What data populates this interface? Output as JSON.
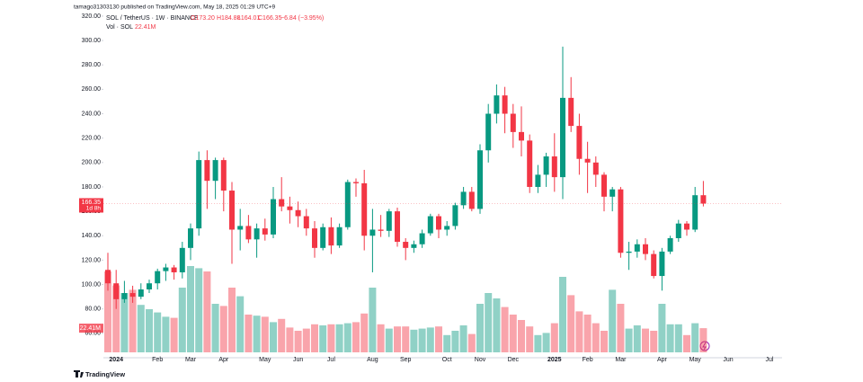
{
  "chart_data": {
    "type": "candlestick",
    "published": "tamago31303130 published on TradingView.com, May 18, 2025 01:29 UTC+9",
    "symbol": "SOL / TetherUS · 1W · BINANCE",
    "legend_open": "O173.20",
    "legend_high": "H184.88",
    "legend_low": "L164.01",
    "legend_close": "C166.35",
    "legend_change": "−6.84 (−3.95%)",
    "volume_title": "Vol · SOL",
    "volume_label": "22.41M",
    "countdown": "1d 8h",
    "brand": "TradingView",
    "up_color": "#089981",
    "down_color": "#f23645",
    "categories": [
      null,
      "2024",
      null,
      null,
      null,
      null,
      "Feb",
      null,
      null,
      null,
      "Mar",
      null,
      null,
      null,
      "Apr",
      null,
      null,
      null,
      null,
      "May",
      null,
      null,
      null,
      "Jun",
      null,
      null,
      null,
      "Jul",
      null,
      null,
      null,
      null,
      "Aug",
      null,
      null,
      null,
      "Sep",
      null,
      null,
      null,
      null,
      "Oct",
      null,
      null,
      null,
      "Nov",
      null,
      null,
      null,
      "Dec",
      null,
      null,
      null,
      null,
      "2025",
      null,
      null,
      null,
      "Feb",
      null,
      null,
      null,
      "Mar",
      null,
      null,
      null,
      null,
      "Apr",
      null,
      null,
      null,
      "May",
      null,
      null,
      null,
      "Jun",
      null,
      null,
      null,
      null,
      "Jul"
    ],
    "open": [
      112,
      101,
      88,
      93,
      90,
      96,
      101,
      111,
      114,
      110,
      130,
      146,
      202,
      185,
      202,
      177,
      145,
      148,
      137,
      146,
      141,
      170,
      164,
      161,
      156,
      146,
      130,
      147,
      132,
      147,
      184,
      183,
      140,
      145,
      144,
      160,
      135,
      130,
      133,
      142,
      156,
      145,
      148,
      165,
      176,
      162,
      210,
      240,
      255,
      240,
      225,
      218,
      180,
      190,
      205,
      188,
      253,
      230,
      203,
      200,
      190,
      172,
      178,
      126,
      127,
      133,
      125,
      107,
      127,
      138,
      150,
      145,
      173.2,
      null,
      null,
      null,
      null,
      null,
      null,
      null,
      null
    ],
    "high": [
      126,
      112,
      103,
      99,
      101,
      104,
      113,
      117,
      116,
      135,
      150,
      209,
      210,
      204,
      204,
      184,
      162,
      157,
      150,
      154,
      180,
      188,
      172,
      168,
      162,
      152,
      150,
      155,
      150,
      186,
      187,
      194,
      162,
      157,
      162,
      163,
      138,
      136,
      145,
      158,
      158,
      152,
      167,
      180,
      180,
      215,
      248,
      264,
      262,
      248,
      246,
      223,
      198,
      208,
      224,
      295,
      270,
      240,
      217,
      205,
      192,
      180,
      180,
      135,
      137,
      138,
      128,
      130,
      140,
      153,
      152,
      180,
      184.88,
      null,
      null,
      null,
      null,
      null,
      null,
      null,
      null
    ],
    "low": [
      95,
      80,
      85,
      85,
      88,
      93,
      96,
      103,
      104,
      105,
      120,
      140,
      162,
      170,
      160,
      117,
      128,
      134,
      122,
      136,
      138,
      160,
      150,
      147,
      140,
      122,
      128,
      125,
      130,
      145,
      172,
      128,
      110,
      139,
      139,
      131,
      120,
      126,
      130,
      140,
      138,
      140,
      145,
      162,
      160,
      158,
      200,
      232,
      224,
      212,
      205,
      175,
      175,
      180,
      176,
      170,
      225,
      190,
      175,
      180,
      160,
      160,
      122,
      112,
      122,
      120,
      105,
      95,
      125,
      135,
      140,
      143,
      164.01,
      null,
      null,
      null,
      null,
      null,
      null,
      null,
      null
    ],
    "close": [
      101,
      88,
      93,
      90,
      96,
      101,
      111,
      114,
      110,
      130,
      146,
      202,
      185,
      202,
      177,
      145,
      148,
      137,
      146,
      141,
      170,
      164,
      161,
      156,
      146,
      130,
      147,
      132,
      147,
      184,
      183,
      140,
      145,
      144,
      160,
      135,
      130,
      133,
      142,
      156,
      145,
      148,
      165,
      176,
      162,
      210,
      240,
      255,
      240,
      225,
      218,
      180,
      190,
      205,
      188,
      253,
      230,
      203,
      200,
      190,
      172,
      178,
      126,
      127,
      133,
      125,
      107,
      127,
      138,
      150,
      145,
      173.2,
      166.35,
      null,
      null,
      null,
      null,
      null,
      null,
      null,
      null
    ],
    "volume": [
      75,
      62,
      55,
      58,
      44,
      40,
      37,
      33,
      32,
      60,
      80,
      78,
      75,
      45,
      43,
      60,
      52,
      35,
      34,
      33,
      28,
      31,
      23,
      20,
      22,
      26,
      25,
      26,
      26,
      27,
      28,
      36,
      60,
      26,
      22,
      24,
      24,
      21,
      22,
      23,
      24,
      16,
      20,
      25,
      17,
      45,
      55,
      50,
      42,
      35,
      30,
      24,
      16,
      18,
      27,
      70,
      53,
      38,
      35,
      27,
      20,
      58,
      45,
      22,
      25,
      22,
      20,
      45,
      26,
      26,
      16,
      27,
      22.41,
      null,
      null,
      null,
      null,
      null,
      null,
      null,
      null
    ],
    "ylim": [
      40,
      324
    ],
    "yticks": [
      {
        "value": 60,
        "label": "60.00"
      },
      {
        "value": 80,
        "label": "80.00"
      },
      {
        "value": 100,
        "label": "100.00"
      },
      {
        "value": 120,
        "label": "120.00"
      },
      {
        "value": 140,
        "label": "140.00"
      },
      {
        "value": 160,
        "label": "160.00"
      },
      {
        "value": 180,
        "label": "180.00"
      },
      {
        "value": 200,
        "label": "200.00"
      },
      {
        "value": 220,
        "label": "220.00"
      },
      {
        "value": 240,
        "label": "240.00"
      },
      {
        "value": 260,
        "label": "260.00"
      },
      {
        "value": 280,
        "label": "280.00"
      },
      {
        "value": 300,
        "label": "300.00"
      },
      {
        "value": 320,
        "label": "320.00"
      }
    ],
    "grid": false
  }
}
